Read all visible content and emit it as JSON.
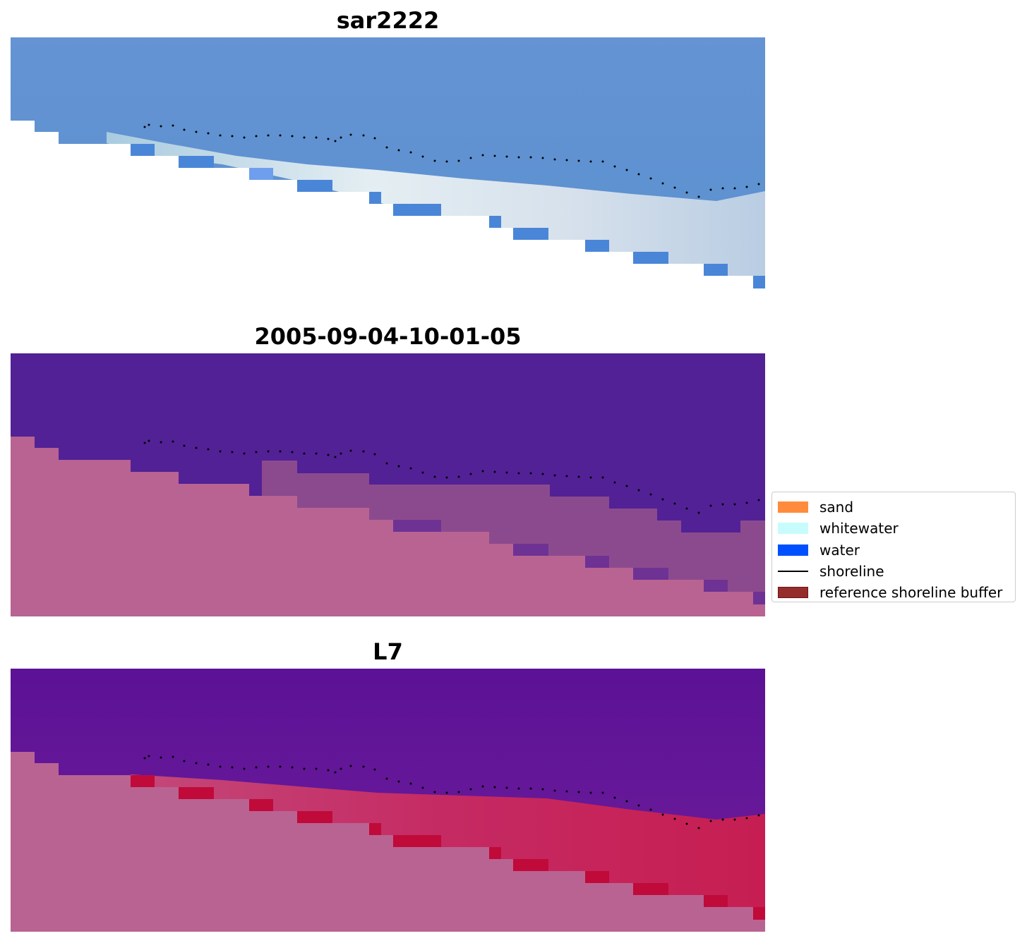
{
  "panels": [
    {
      "title": "sar2222"
    },
    {
      "title": "2005-09-04-10-01-05"
    },
    {
      "title": "L7"
    }
  ],
  "legend": {
    "items": [
      {
        "label": "sand",
        "color": "#ff8c3c",
        "kind": "patch"
      },
      {
        "label": "whitewater",
        "color": "#c8fcfc",
        "kind": "patch"
      },
      {
        "label": "water",
        "color": "#0050ff",
        "kind": "patch"
      },
      {
        "label": "shoreline",
        "color": "#000000",
        "kind": "line"
      },
      {
        "label": "reference shoreline buffer",
        "color": "#952d2d",
        "kind": "patch"
      }
    ]
  },
  "colors": {
    "sar_water": "#5b8fd1",
    "sar_whitewater": "#c9dbe8",
    "class_water": "#522196",
    "class_land": "#b96392",
    "class_mixed": "#8e4a8e",
    "l7_water": "#5b1294",
    "l7_sand": "#c4275f",
    "shoreline": "#000000"
  }
}
